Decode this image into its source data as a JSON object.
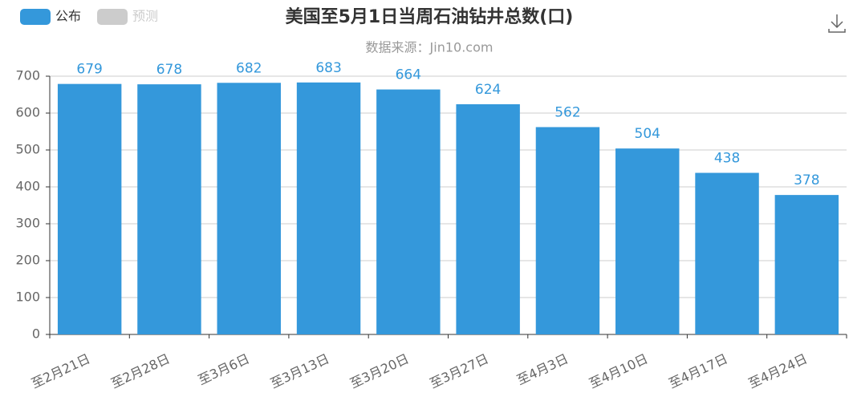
{
  "chart_data": {
    "type": "bar",
    "title": "美国至5月1日当周石油钻井总数(口)",
    "subtitle": "数据来源：Jin10.com",
    "categories": [
      "至2月21日",
      "至2月28日",
      "至3月6日",
      "至3月13日",
      "至3月20日",
      "至3月27日",
      "至4月3日",
      "至4月10日",
      "至4月17日",
      "至4月24日"
    ],
    "series": [
      {
        "name": "公布",
        "color": "#3498db",
        "values": [
          679,
          678,
          682,
          683,
          664,
          624,
          562,
          504,
          438,
          378
        ]
      },
      {
        "name": "预测",
        "color": "#cccccc",
        "values": [
          null,
          null,
          null,
          null,
          null,
          null,
          null,
          null,
          null,
          null
        ]
      }
    ],
    "ylim": [
      0,
      700
    ],
    "yticks": [
      0,
      100,
      200,
      300,
      400,
      500,
      600,
      700
    ],
    "grid": true
  }
}
